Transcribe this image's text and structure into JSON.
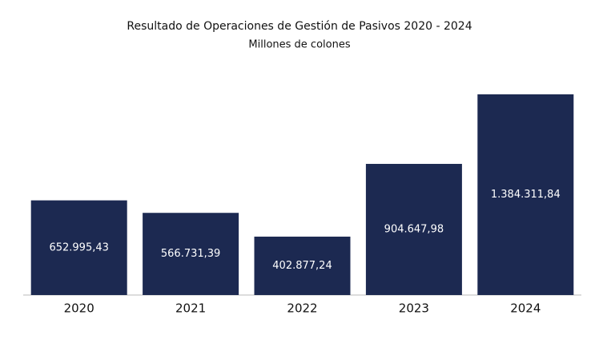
{
  "chart_data": {
    "type": "bar",
    "title": "Resultado de Operaciones de Gestión de Pasivos 2020 - 2024",
    "subtitle": "Millones de colones",
    "categories": [
      "2020",
      "2021",
      "2022",
      "2023",
      "2024"
    ],
    "values": [
      652995.43,
      566731.39,
      402877.24,
      904647.98,
      1384311.84
    ],
    "value_labels": [
      "652.995,43",
      "566.731,39",
      "402.877,24",
      "904.647,98",
      "1.384.311,84"
    ],
    "color": "#1c2951"
  }
}
